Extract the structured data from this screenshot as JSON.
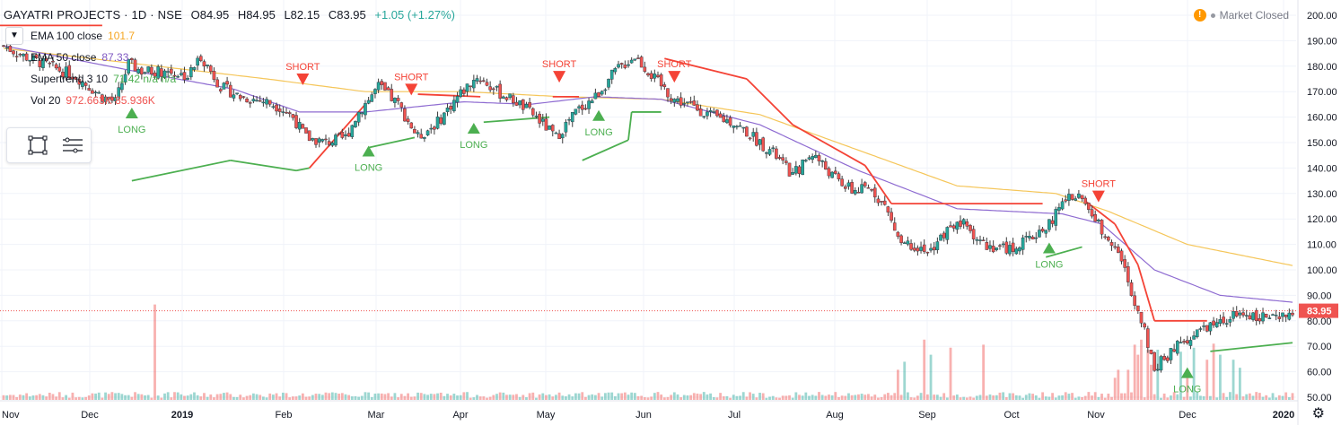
{
  "header": {
    "symbol": "GAYATRI PROJECTS · 1D · NSE",
    "open": "O84.95",
    "high": "H84.95",
    "low": "L82.15",
    "close": "C83.95",
    "change": "+1.05 (+1.27%)",
    "market_status": "Market Closed"
  },
  "legend": [
    {
      "name": "EMA 100 close",
      "value": "101.7",
      "color": "#f5a623"
    },
    {
      "name": "EMA 50 close",
      "value": "87.33",
      "color": "#7e57c2"
    },
    {
      "name": "Supertrend 3 10",
      "value": "71.42  n/a  n/a",
      "color": "#4caf50"
    },
    {
      "name": "Vol 20",
      "value": "972.663K  85.936K",
      "color": "#ef5350"
    }
  ],
  "icons": {
    "collapse": "chevron-down-icon",
    "rect": "rectangle-tool-icon",
    "lines": "horizontal-lines-icon",
    "warning": "warning-icon",
    "settings": "gear-icon"
  },
  "colors": {
    "up": "#26a69a",
    "down": "#ef5350",
    "ema100": "#f5c65a",
    "ema50": "#8e6bd1",
    "st_up": "#4caf50",
    "st_down": "#f44336",
    "price_line": "#ef5350"
  },
  "chart_data": {
    "type": "candlestick",
    "price_axis": {
      "ticks": [
        200,
        190,
        180,
        170,
        160,
        150,
        140,
        130,
        120,
        110,
        100,
        90,
        80,
        70,
        60,
        50
      ],
      "labels": [
        "200.00",
        "190.00",
        "180.00",
        "170.00",
        "160.00",
        "150.00",
        "140.00",
        "130.00",
        "120.00",
        "110.00",
        "100.00",
        "90.00",
        "80.00",
        "70.00",
        "60.00",
        "50.00"
      ],
      "range": [
        47,
        203
      ]
    },
    "time_axis": [
      "Nov",
      "Dec",
      "2019",
      "Feb",
      "Mar",
      "Apr",
      "May",
      "Jun",
      "Jul",
      "Aug",
      "Sep",
      "Oct",
      "Nov",
      "Dec",
      "2020"
    ],
    "last_price": {
      "value": 83.95,
      "label": "83.95"
    },
    "anchors": [
      [
        0,
        188
      ],
      [
        6,
        184
      ],
      [
        14,
        180
      ],
      [
        22,
        176
      ],
      [
        30,
        168
      ],
      [
        34,
        166
      ],
      [
        38,
        181
      ],
      [
        42,
        178
      ],
      [
        50,
        178
      ],
      [
        56,
        176
      ],
      [
        60,
        184
      ],
      [
        66,
        172
      ],
      [
        72,
        168
      ],
      [
        80,
        166
      ],
      [
        84,
        164
      ],
      [
        88,
        160
      ],
      [
        92,
        152
      ],
      [
        98,
        150
      ],
      [
        104,
        152
      ],
      [
        108,
        162
      ],
      [
        114,
        172
      ],
      [
        120,
        165
      ],
      [
        126,
        152
      ],
      [
        132,
        158
      ],
      [
        138,
        168
      ],
      [
        144,
        176
      ],
      [
        150,
        170
      ],
      [
        156,
        166
      ],
      [
        162,
        160
      ],
      [
        168,
        152
      ],
      [
        174,
        162
      ],
      [
        180,
        168
      ],
      [
        186,
        178
      ],
      [
        192,
        184
      ],
      [
        198,
        175
      ],
      [
        204,
        167
      ],
      [
        210,
        164
      ],
      [
        216,
        160
      ],
      [
        222,
        158
      ],
      [
        228,
        152
      ],
      [
        234,
        146
      ],
      [
        240,
        137
      ],
      [
        246,
        146
      ],
      [
        252,
        137
      ],
      [
        258,
        131
      ],
      [
        264,
        132
      ],
      [
        268,
        125
      ],
      [
        272,
        113
      ],
      [
        276,
        110
      ],
      [
        282,
        108
      ],
      [
        288,
        117
      ],
      [
        292,
        118
      ],
      [
        298,
        110
      ],
      [
        306,
        108
      ],
      [
        312,
        112
      ],
      [
        318,
        118
      ],
      [
        322,
        126
      ],
      [
        326,
        130
      ],
      [
        330,
        124
      ],
      [
        334,
        116
      ],
      [
        338,
        110
      ],
      [
        342,
        96
      ],
      [
        346,
        80
      ],
      [
        350,
        62
      ],
      [
        354,
        66
      ],
      [
        358,
        72
      ],
      [
        364,
        76
      ],
      [
        370,
        80
      ],
      [
        376,
        83
      ],
      [
        382,
        82
      ],
      [
        388,
        80
      ],
      [
        392,
        84
      ]
    ],
    "candle_count": 393,
    "ema100": [
      [
        0,
        187
      ],
      [
        40,
        181
      ],
      [
        80,
        175
      ],
      [
        110,
        170
      ],
      [
        140,
        170
      ],
      [
        170,
        168
      ],
      [
        200,
        167
      ],
      [
        230,
        161
      ],
      [
        260,
        147
      ],
      [
        290,
        133
      ],
      [
        320,
        130
      ],
      [
        336,
        123
      ],
      [
        360,
        110
      ],
      [
        392,
        101.7
      ]
    ],
    "ema50": [
      [
        0,
        188
      ],
      [
        40,
        178
      ],
      [
        70,
        171
      ],
      [
        90,
        162
      ],
      [
        110,
        162
      ],
      [
        140,
        166
      ],
      [
        160,
        165
      ],
      [
        180,
        168
      ],
      [
        200,
        167
      ],
      [
        230,
        157
      ],
      [
        260,
        139
      ],
      [
        290,
        124
      ],
      [
        322,
        122
      ],
      [
        334,
        118
      ],
      [
        350,
        100
      ],
      [
        370,
        90
      ],
      [
        392,
        87.3
      ]
    ],
    "supertrend": [
      [
        39,
        135,
        "up"
      ],
      [
        69,
        143,
        "up"
      ],
      [
        89,
        139,
        "up"
      ],
      [
        93,
        140,
        "down"
      ],
      [
        110,
        165,
        "down"
      ],
      [
        111,
        148,
        "up"
      ],
      [
        125,
        152,
        "up"
      ],
      [
        126,
        169,
        "down"
      ],
      [
        145,
        168,
        "down"
      ],
      [
        146,
        158,
        "up"
      ],
      [
        166,
        160,
        "up"
      ],
      [
        167,
        168,
        "down"
      ],
      [
        175,
        168,
        "down"
      ],
      [
        176,
        143,
        "up"
      ],
      [
        190,
        151,
        "up"
      ],
      [
        191,
        162,
        "up"
      ],
      [
        200,
        162,
        "up"
      ],
      [
        201,
        183,
        "down"
      ],
      [
        226,
        175,
        "down"
      ],
      [
        240,
        157,
        "down"
      ],
      [
        262,
        141,
        "down"
      ],
      [
        270,
        126,
        "down"
      ],
      [
        316,
        126,
        "down"
      ],
      [
        317,
        105,
        "up"
      ],
      [
        328,
        109,
        "up"
      ],
      [
        329,
        127,
        "down"
      ],
      [
        338,
        118,
        "down"
      ],
      [
        345,
        102,
        "down"
      ],
      [
        350,
        80,
        "down"
      ],
      [
        366,
        80,
        "down"
      ],
      [
        367,
        68,
        "up"
      ],
      [
        392,
        71.4,
        "up"
      ]
    ],
    "signals": [
      {
        "label": "LONG",
        "type": "long",
        "i": 39,
        "price": 156
      },
      {
        "label": "SHORT",
        "type": "short",
        "i": 91,
        "price": 175
      },
      {
        "label": "LONG",
        "type": "long",
        "i": 111,
        "price": 141
      },
      {
        "label": "SHORT",
        "type": "short",
        "i": 124,
        "price": 171
      },
      {
        "label": "LONG",
        "type": "long",
        "i": 143,
        "price": 150
      },
      {
        "label": "SHORT",
        "type": "short",
        "i": 169,
        "price": 176
      },
      {
        "label": "LONG",
        "type": "long",
        "i": 181,
        "price": 155
      },
      {
        "label": "SHORT",
        "type": "short",
        "i": 204,
        "price": 176
      },
      {
        "label": "LONG",
        "type": "long",
        "i": 318,
        "price": 103
      },
      {
        "label": "SHORT",
        "type": "short",
        "i": 333,
        "price": 129
      },
      {
        "label": "LONG",
        "type": "long",
        "i": 360,
        "price": 54
      }
    ],
    "volume_spikes": [
      [
        46,
        0.95
      ],
      [
        298,
        0.55
      ],
      [
        272,
        0.3
      ],
      [
        274,
        0.38
      ],
      [
        280,
        0.6
      ],
      [
        282,
        0.45
      ],
      [
        288,
        0.52
      ],
      [
        338,
        0.22
      ],
      [
        339,
        0.3
      ],
      [
        342,
        0.3
      ],
      [
        344,
        0.55
      ],
      [
        345,
        0.45
      ],
      [
        346,
        0.6
      ],
      [
        348,
        0.5
      ],
      [
        349,
        0.35
      ],
      [
        351,
        0.5
      ],
      [
        358,
        0.48
      ],
      [
        360,
        0.3
      ],
      [
        362,
        0.52
      ],
      [
        366,
        0.4
      ],
      [
        368,
        0.56
      ],
      [
        370,
        0.45
      ],
      [
        374,
        0.4
      ],
      [
        376,
        0.32
      ]
    ],
    "volume_max_label": "972.663K"
  }
}
